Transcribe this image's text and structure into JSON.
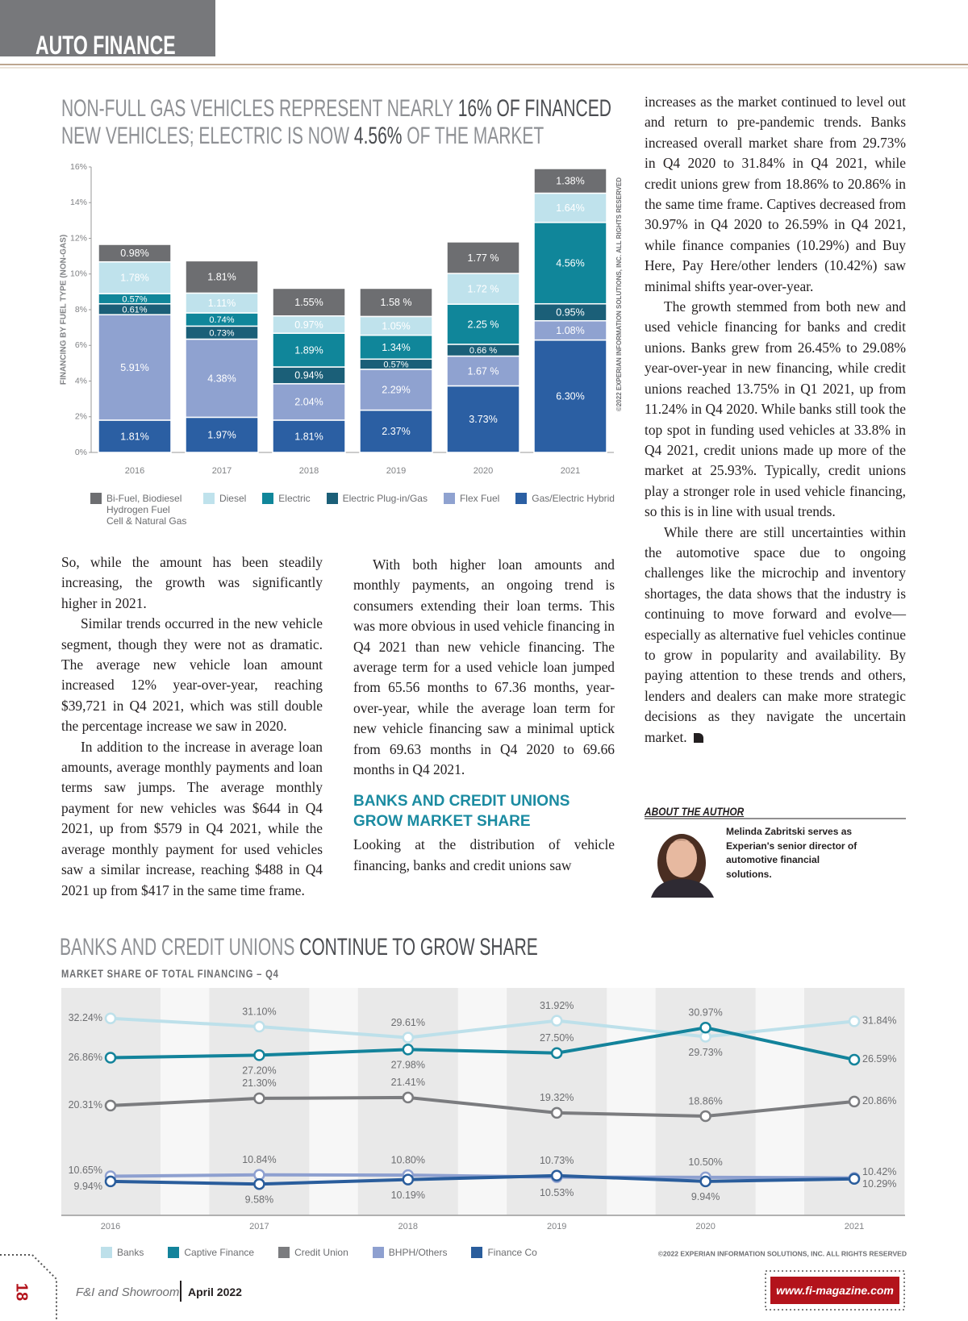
{
  "header": {
    "section": "AUTO FINANCE"
  },
  "chart_data": [
    {
      "type": "bar",
      "stacked": true,
      "title": [
        [
          {
            "text": "NON-FULL GAS VEHICLES REPRESENT NEARLY ",
            "highlight": false
          },
          {
            "text": "16% OF FINANCED",
            "highlight": true
          }
        ],
        [
          {
            "text": "NEW VEHICLES; ELECTRIC IS NOW ",
            "highlight": false
          },
          {
            "text": "4.56%",
            "highlight": true
          },
          {
            "text": " OF THE MARKET",
            "highlight": false
          }
        ]
      ],
      "y_label": "FINANCING BY FUEL TYPE (NON-GAS)",
      "source": "©2022 EXPERIAN INFORMATION SOLUTIONS, INC. ALL RIGHTS RESERVED",
      "categories": [
        "2016",
        "2017",
        "2018",
        "2019",
        "2020",
        "2021"
      ],
      "ylim": [
        0,
        16
      ],
      "yticks": [
        {
          "value": 0,
          "label": "0%"
        },
        {
          "value": 2,
          "label": "2%"
        },
        {
          "value": 4,
          "label": "4%"
        },
        {
          "value": 6,
          "label": "6%"
        },
        {
          "value": 8,
          "label": "8%"
        },
        {
          "value": 10,
          "label": "10%"
        },
        {
          "value": 12,
          "label": "12%"
        },
        {
          "value": 14,
          "label": "14%"
        },
        {
          "value": 16,
          "label": "16%"
        }
      ],
      "grid": false,
      "series": [
        {
          "name": "Bi-Fuel, Biodiesel Hydrogen Fuel Cell & Natural Gas",
          "color": "#6d6e71",
          "values": [
            0.98,
            1.81,
            1.55,
            1.58,
            1.77,
            1.38
          ],
          "value_labels": [
            "0.98%",
            "1.81%",
            "1.55%",
            "1.58 %",
            "1.77 %",
            "1.38%"
          ]
        },
        {
          "name": "Diesel",
          "color": "#bfe2ec",
          "values": [
            1.78,
            1.11,
            0.97,
            1.05,
            1.72,
            1.64
          ],
          "value_labels": [
            "1.78%",
            "1.11%",
            "0.97%",
            "1.05%",
            "1.72 %",
            "1.64%"
          ]
        },
        {
          "name": "Electric",
          "color": "#10869a",
          "values": [
            0.57,
            0.74,
            1.89,
            1.34,
            2.25,
            4.56
          ],
          "value_labels": [
            "0.57%",
            "0.74%",
            "1.89%",
            "1.34%",
            "2.25 %",
            "4.56%"
          ]
        },
        {
          "name": "Electric Plug-in/Gas",
          "color": "#1b5f78",
          "values": [
            0.61,
            0.73,
            0.94,
            0.57,
            0.66,
            0.95
          ],
          "value_labels": [
            "0.61%",
            "0.73%",
            "0.94%",
            "0.57%",
            "0.66 %",
            "0.95%"
          ]
        },
        {
          "name": "Flex Fuel",
          "color": "#8fa2d0",
          "values": [
            5.91,
            4.38,
            2.04,
            2.29,
            1.67,
            1.08
          ],
          "value_labels": [
            "5.91%",
            "4.38%",
            "2.04%",
            "2.29%",
            "1.67 %",
            "1.08%"
          ]
        },
        {
          "name": "Gas/Electric Hybrid",
          "color": "#2b5fa3",
          "values": [
            1.81,
            1.97,
            1.81,
            2.37,
            3.73,
            6.3
          ],
          "value_labels": [
            "1.81%",
            "1.97%",
            "1.81%",
            "2.37%",
            "3.73%",
            "6.30%"
          ]
        }
      ]
    },
    {
      "type": "line",
      "title": [
        [
          {
            "text": "BANKS AND CREDIT UNIONS ",
            "highlight": false
          },
          {
            "text": "CONTINUE TO GROW SHARE",
            "highlight": true
          }
        ]
      ],
      "subtitle": "MARKET SHARE OF TOTAL FINANCING – Q4",
      "source": "©2022 EXPERIAN INFORMATION SOLUTIONS, INC. ALL RIGHTS RESERVED",
      "categories": [
        "2016",
        "2017",
        "2018",
        "2019",
        "2020",
        "2021"
      ],
      "ylim": [
        5.3,
        36.4
      ],
      "series": [
        {
          "name": "Banks",
          "color": "#bde0ea",
          "values": [
            32.24,
            31.1,
            29.61,
            31.92,
            29.73,
            31.84
          ],
          "value_labels": [
            "32.24%",
            "31.10%",
            "29.61%",
            "31.92%",
            "29.73%",
            "31.84%"
          ]
        },
        {
          "name": "Captive Finance",
          "color": "#13839b",
          "values": [
            26.86,
            27.2,
            27.98,
            27.5,
            30.97,
            26.59
          ],
          "value_labels": [
            "26.86%",
            "27.20%",
            "27.98%",
            "27.50%",
            "30.97%",
            "26.59%"
          ]
        },
        {
          "name": "Credit Union",
          "color": "#7b7c7f",
          "values": [
            20.31,
            21.3,
            21.41,
            19.32,
            18.86,
            20.86
          ],
          "value_labels": [
            "20.31%",
            "21.30%",
            "21.41%",
            "19.32%",
            "18.86%",
            "20.86%"
          ]
        },
        {
          "name": "BHPH/Others",
          "color": "#8ea0d0",
          "values": [
            10.65,
            10.84,
            10.8,
            10.53,
            10.5,
            10.42
          ],
          "value_labels": [
            "10.65%",
            "10.84%",
            "10.80%",
            "10.53%",
            "10.50%",
            "10.42%"
          ]
        },
        {
          "name": "Finance Co",
          "color": "#2a5d9c",
          "values": [
            9.94,
            9.58,
            10.19,
            10.73,
            9.94,
            10.29
          ],
          "value_labels": [
            "9.94%",
            "9.58%",
            "10.19%",
            "10.73%",
            "9.94%",
            "10.29%"
          ]
        }
      ]
    }
  ],
  "article": {
    "columns": [
      [
        {
          "text": "So, while the amount has been steadily increasing, the growth was significantly higher in 2021."
        },
        {
          "text": "Similar trends occurred in the new vehicle segment, though they were not as dramatic. The average new vehicle loan amount increased 12% year-over-year, reaching $39,721 in Q4 2021, which was still double the percentage increase we saw in 2020."
        },
        {
          "text": "In addition to the increase in average loan amounts, average monthly payments and loan terms saw jumps. The average monthly payment for new vehicles was $644 in Q4 2021, up from $579 in Q4 2021, while the average monthly payment for used vehicles saw a similar increase, reaching $488 in Q4 2021 up from $417 in the same time frame."
        }
      ],
      [
        {
          "text": "With both higher loan amounts and monthly payments, an ongoing trend is consumers extending their loan terms. This was more obvious in used vehicle financing in Q4 2021 than new vehicle financing. The average term for a used vehicle loan jumped from 65.56 months to 67.36 months, year-over-year, while the average loan term for new vehicle financing saw a minimal uptick from 69.63 months in Q4 2020 to 69.66 months in Q4 2021."
        },
        {
          "heading": "BANKS AND CREDIT UNIONS GROW MARKET SHARE"
        },
        {
          "text": "Looking at the distribution of vehicle financing, banks and credit unions saw"
        }
      ],
      [
        {
          "text": "increases as the market continued to level out and return to pre-pandemic trends. Banks increased overall market share from 29.73% in Q4 2020 to 31.84% in Q4 2021, while credit unions grew from 18.86% to 20.86% in the same time frame. Captives decreased from 30.97% in Q4 2020 to 26.59% in Q4 2021, while finance companies (10.29%) and Buy Here, Pay Here/other lenders (10.42%) saw minimal shifts year-over-year."
        },
        {
          "text": "The growth stemmed from both new and used vehicle financing for banks and credit unions. Banks grew from 26.45% to 29.08% year-over-year in new financing, while credit unions reached 13.75% in Q1 2021, up from 11.24% in Q4 2020. While banks still took the top spot in funding used vehicles at 33.8% in Q4 2021, credit unions made up more of the market at 25.93%. Typically, credit unions play a stronger role in used vehicle financing, so this is in line with usual trends."
        },
        {
          "text": "While there are still uncertainties within the automotive space due to ongoing challenges like the microchip and inventory shortages, the data shows that the industry is continuing to move forward and evolve—especially as alternative fuel vehicles continue to grow in popularity and availability. By paying attention to these trends and others, lenders and dealers can make more strategic decisions as they navigate the uncertain market."
        }
      ]
    ]
  },
  "author": {
    "heading": "ABOUT THE AUTHOR",
    "bio": "Melinda Zabritski serves as Experian's senior director of automotive financial solutions."
  },
  "footer": {
    "page_number": "18",
    "publication": "F&I and Showroom",
    "issue": "April 2022",
    "url": "www.fi-magazine.com"
  }
}
